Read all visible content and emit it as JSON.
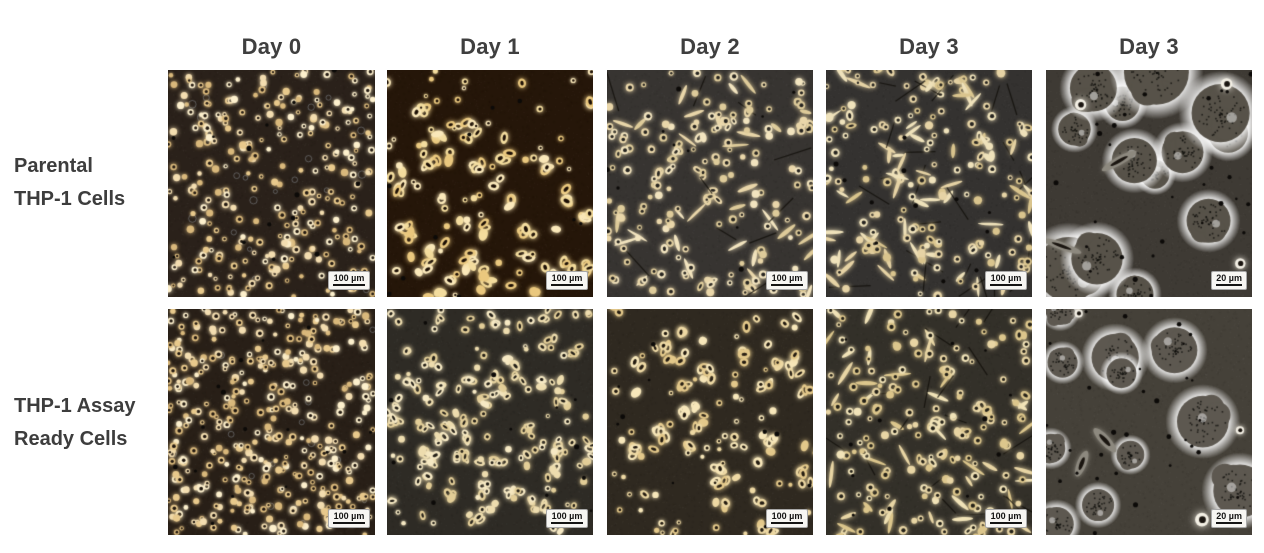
{
  "figure": {
    "columns": [
      "Day 0",
      "Day 1",
      "Day 2",
      "Day 3",
      "Day 3"
    ],
    "rows": [
      {
        "label_lines": [
          "Parental",
          "THP-1 Cells"
        ],
        "panels": [
          {
            "scale_label": "100 µm",
            "render": {
              "style": "dots",
              "seed": 7,
              "bg": "#2a211a",
              "hole": "#231a12",
              "colors": [
                "#f3ddb0",
                "#e8c98c",
                "#fdf0cd",
                "#d9b87b"
              ],
              "count": 280,
              "faint": 22,
              "dark": 14
            }
          },
          {
            "scale_label": "100 µm",
            "render": {
              "style": "clumps",
              "seed": 13,
              "bg": "#251609",
              "hole": "#1c0f05",
              "colors": [
                "#f3dc9e",
                "#eac87e",
                "#fae8ba"
              ],
              "clusters": 48,
              "size": 4.2,
              "count": 45,
              "dark": 10
            }
          },
          {
            "scale_label": "100 µm",
            "render": {
              "style": "mixed",
              "seed": 21,
              "bg": "#373431",
              "hole": "#262420",
              "colors": [
                "#e9d6a9",
                "#decb9a",
                "#f2e4bf"
              ],
              "count": 140,
              "spindles": 30,
              "clusters": 14,
              "dark": 12
            }
          },
          {
            "scale_label": "100 µm",
            "render": {
              "style": "adherent",
              "seed": 29,
              "bg": "#343230",
              "hole": "#262420",
              "colors": [
                "#e6d3a5",
                "#d9c48d",
                "#efe2bb"
              ],
              "count": 120,
              "spindles": 55,
              "clusters": 16,
              "dark": 12
            }
          },
          {
            "scale_label": "20 µm",
            "render": {
              "style": "macro",
              "seed": 37,
              "bg": "#3e3a34",
              "body": "#575249",
              "colors": [
                "#f3efe4"
              ],
              "count": 13,
              "dark": 30
            }
          }
        ]
      },
      {
        "label_lines": [
          "THP-1 Assay",
          "Ready Cells"
        ],
        "panels": [
          {
            "scale_label": "100 µm",
            "render": {
              "style": "dots",
              "seed": 43,
              "bg": "#281f17",
              "hole": "#20170f",
              "colors": [
                "#f3ddb0",
                "#e8c98c",
                "#fdf0cd",
                "#d9b87b"
              ],
              "count": 400,
              "faint": 18,
              "dark": 16
            }
          },
          {
            "scale_label": "100 µm",
            "render": {
              "style": "clumps",
              "seed": 51,
              "bg": "#2e2b25",
              "hole": "#211d16",
              "colors": [
                "#eddcae",
                "#e2cd97",
                "#f6e9c4"
              ],
              "clusters": 75,
              "size": 3.2,
              "count": 60,
              "dark": 12
            }
          },
          {
            "scale_label": "100 µm",
            "render": {
              "style": "clumps",
              "seed": 59,
              "bg": "#2f2920",
              "hole": "#221a10",
              "colors": [
                "#eed9a4",
                "#e3c88a",
                "#f7e7ba"
              ],
              "clusters": 55,
              "size": 3.8,
              "count": 50,
              "dark": 10
            }
          },
          {
            "scale_label": "100 µm",
            "render": {
              "style": "mixed",
              "seed": 67,
              "bg": "#333029",
              "hole": "#242118",
              "colors": [
                "#e8d5a4",
                "#dcc68c",
                "#f1e3b8"
              ],
              "count": 140,
              "spindles": 38,
              "clusters": 14,
              "dark": 12
            }
          },
          {
            "scale_label": "20 µm",
            "render": {
              "style": "macro",
              "seed": 73,
              "bg": "#454139",
              "body": "#5d5850",
              "colors": [
                "#f3efe4"
              ],
              "count": 11,
              "dark": 30
            }
          }
        ]
      }
    ],
    "text_color": "#3d3d3d"
  }
}
